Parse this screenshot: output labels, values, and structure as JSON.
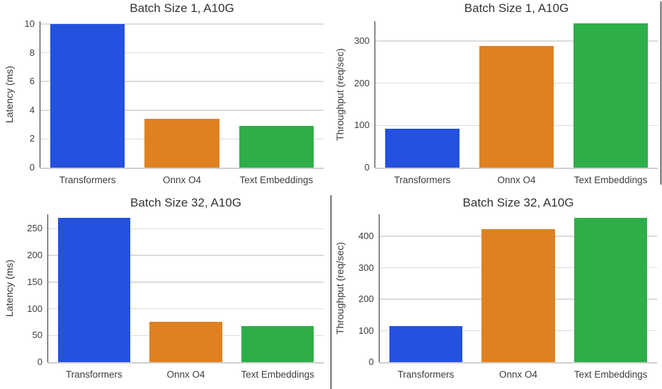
{
  "palette": {
    "series_colors": [
      "#2452de",
      "#e08121",
      "#2eae49"
    ],
    "series_names": [
      "transformers-blue",
      "onnx-orange",
      "text-embeddings-green"
    ]
  },
  "styles": {
    "background": "#ffffff",
    "grid_color": "#dcdcdc",
    "spine_left_color": "#2e2e2e",
    "spine_bottom_color": "#cfcfcf",
    "title_color": "#333333",
    "tick_color": "#3d3d3d",
    "divider_color": "#000000"
  },
  "chart_data": [
    {
      "type": "bar",
      "title": "Batch Size 1, A10G",
      "ylabel": "Latency (ms)",
      "xlabel": "",
      "categories": [
        "Transformers",
        "Onnx O4",
        "Text Embeddings"
      ],
      "values": [
        10.0,
        3.4,
        2.9
      ],
      "yticks": [
        0,
        2,
        4,
        6,
        8,
        10
      ],
      "ylim": [
        0,
        10.2
      ],
      "grid": true,
      "legend": "none"
    },
    {
      "type": "bar",
      "title": "Batch Size 1, A10G",
      "ylabel": "Throughput (req/sec)",
      "xlabel": "",
      "categories": [
        "Transformers",
        "Onnx O4",
        "Text Embeddings"
      ],
      "values": [
        92,
        288,
        342
      ],
      "yticks": [
        0,
        100,
        200,
        300
      ],
      "ylim": [
        0,
        347
      ],
      "grid": true,
      "legend": "none"
    },
    {
      "type": "bar",
      "title": "Batch Size 32, A10G",
      "ylabel": "Latency (ms)",
      "xlabel": "",
      "categories": [
        "Transformers",
        "Onnx O4",
        "Text Embeddings"
      ],
      "values": [
        270,
        75,
        68
      ],
      "yticks": [
        0,
        50,
        100,
        150,
        200,
        250
      ],
      "ylim": [
        0,
        277
      ],
      "grid": true,
      "legend": "none"
    },
    {
      "type": "bar",
      "title": "Batch Size 32, A10G",
      "ylabel": "Throughput (req/sec)",
      "xlabel": "",
      "categories": [
        "Transformers",
        "Onnx O4",
        "Text Embeddings"
      ],
      "values": [
        115,
        422,
        458
      ],
      "yticks": [
        0,
        100,
        200,
        300,
        400
      ],
      "ylim": [
        0,
        470
      ],
      "grid": true,
      "legend": "none"
    }
  ]
}
